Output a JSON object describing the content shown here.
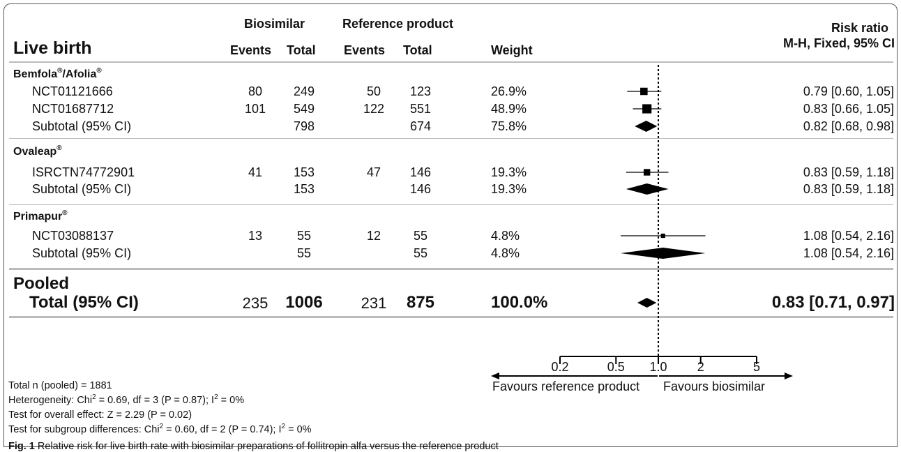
{
  "header": {
    "outcome": "Live birth",
    "biosimilar": "Biosimilar",
    "reference": "Reference product",
    "events": "Events",
    "total": "Total",
    "weight": "Weight",
    "rr_title": "Risk ratio",
    "rr_method": "M-H, Fixed, 95% CI"
  },
  "groups": [
    {
      "name": "Bemfola",
      "sup1": "®",
      "sep": "/Afolia",
      "sup2": "®",
      "studies": [
        {
          "label": "NCT01121666",
          "bio_events": "80",
          "bio_total": "249",
          "ref_events": "50",
          "ref_total": "123",
          "weight": "26.9%",
          "ci": "0.79 [0.60, 1.05]"
        },
        {
          "label": "NCT01687712",
          "bio_events": "101",
          "bio_total": "549",
          "ref_events": "122",
          "ref_total": "551",
          "weight": "48.9%",
          "ci": "0.83 [0.66, 1.05]"
        }
      ],
      "subtotal": {
        "label": "Subtotal (95% CI)",
        "bio_total": "798",
        "ref_total": "674",
        "weight": "75.8%",
        "ci": "0.82 [0.68, 0.98]"
      }
    },
    {
      "name": "Ovaleap",
      "sup1": "®",
      "studies": [
        {
          "label": "ISRCTN74772901",
          "bio_events": "41",
          "bio_total": "153",
          "ref_events": "47",
          "ref_total": "146",
          "weight": "19.3%",
          "ci": "0.83 [0.59, 1.18]"
        }
      ],
      "subtotal": {
        "label": "Subtotal (95% CI)",
        "bio_total": "153",
        "ref_total": "146",
        "weight": "19.3%",
        "ci": "0.83 [0.59, 1.18]"
      }
    },
    {
      "name": "Primapur",
      "sup1": "®",
      "studies": [
        {
          "label": "NCT03088137",
          "bio_events": "13",
          "bio_total": "55",
          "ref_events": "12",
          "ref_total": "55",
          "weight": "4.8%",
          "ci": "1.08 [0.54, 2.16]"
        }
      ],
      "subtotal": {
        "label": "Subtotal (95% CI)",
        "bio_total": "55",
        "ref_total": "55",
        "weight": "4.8%",
        "ci": "1.08 [0.54, 2.16]"
      }
    }
  ],
  "pooled": {
    "label": "Pooled",
    "total_label": "Total (95% CI)",
    "bio_events": "235",
    "bio_total": "1006",
    "ref_events": "231",
    "ref_total": "875",
    "weight": "100.0%",
    "ci": "0.83 [0.71, 0.97]"
  },
  "axis": {
    "ticks": [
      "0.2",
      "0.5",
      "1.0",
      "2",
      "5"
    ],
    "left_label": "Favours reference product",
    "right_label": "Favours biosimilar"
  },
  "footnotes": {
    "total_n": "Total n (pooled) = 1881",
    "heterogeneity_a": "Heterogeneity: Chi",
    "heterogeneity_b": " = 0.69, df = 3 (P = 0.87); I",
    "heterogeneity_c": " = 0%",
    "overall": "Test for overall effect: Z = 2.29 (P = 0.02)",
    "subgroup_a": "Test for subgroup differences: Chi",
    "subgroup_b": " = 0.60, df = 2 (P = 0.74); I",
    "subgroup_c": " = 0%",
    "sq": "2"
  },
  "caption": {
    "fig": "Fig. 1",
    "text": " Relative risk for live birth rate with biosimilar preparations of follitropin alfa versus the reference product"
  },
  "chart_data": {
    "type": "forest",
    "scale": "log",
    "xlim": [
      0.2,
      5
    ],
    "reference_line": 1.0,
    "ticks": [
      0.2,
      0.5,
      1.0,
      2,
      5
    ],
    "studies": [
      {
        "label": "NCT01121666",
        "rr": 0.79,
        "lo": 0.6,
        "hi": 1.05,
        "weight": 26.9,
        "kind": "study"
      },
      {
        "label": "NCT01687712",
        "rr": 0.83,
        "lo": 0.66,
        "hi": 1.05,
        "weight": 48.9,
        "kind": "study"
      },
      {
        "label": "Subtotal (95% CI)",
        "rr": 0.82,
        "lo": 0.68,
        "hi": 0.98,
        "weight": 75.8,
        "kind": "subtotal"
      },
      {
        "label": "ISRCTN74772901",
        "rr": 0.83,
        "lo": 0.59,
        "hi": 1.18,
        "weight": 19.3,
        "kind": "study"
      },
      {
        "label": "Subtotal (95% CI)",
        "rr": 0.83,
        "lo": 0.59,
        "hi": 1.18,
        "weight": 19.3,
        "kind": "subtotal"
      },
      {
        "label": "NCT03088137",
        "rr": 1.08,
        "lo": 0.54,
        "hi": 2.16,
        "weight": 4.8,
        "kind": "study"
      },
      {
        "label": "Subtotal (95% CI)",
        "rr": 1.08,
        "lo": 0.54,
        "hi": 2.16,
        "weight": 4.8,
        "kind": "subtotal"
      },
      {
        "label": "Total (95% CI)",
        "rr": 0.83,
        "lo": 0.71,
        "hi": 0.97,
        "weight": 100.0,
        "kind": "total"
      }
    ]
  }
}
